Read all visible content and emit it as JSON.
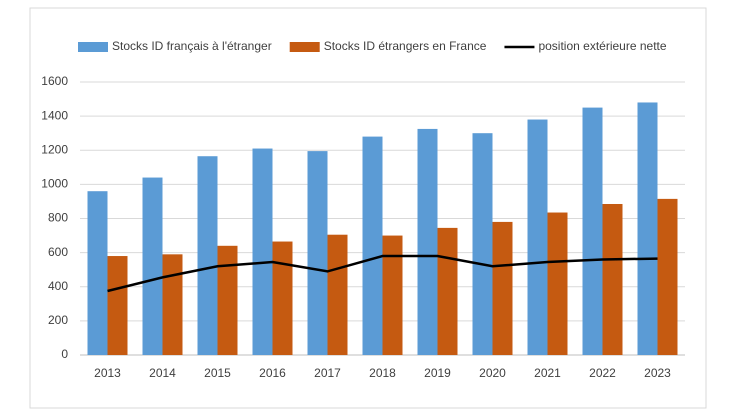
{
  "chart_data": {
    "type": "bar",
    "categories": [
      "2013",
      "2014",
      "2015",
      "2016",
      "2017",
      "2018",
      "2019",
      "2020",
      "2021",
      "2022",
      "2023"
    ],
    "series": [
      {
        "name": "Stocks ID français à l'étranger",
        "color": "#5b9bd5",
        "type": "bar",
        "values": [
          960,
          1040,
          1165,
          1210,
          1195,
          1280,
          1325,
          1300,
          1380,
          1450,
          1480
        ]
      },
      {
        "name": "Stocks ID étrangers en France",
        "color": "#c55a11",
        "type": "bar",
        "values": [
          580,
          590,
          640,
          665,
          705,
          700,
          745,
          780,
          835,
          885,
          915
        ]
      },
      {
        "name": "position extérieure nette",
        "color": "#000000",
        "type": "line",
        "values": [
          375,
          455,
          520,
          545,
          490,
          580,
          580,
          520,
          545,
          560,
          565
        ]
      }
    ],
    "ylim": [
      0,
      1600
    ],
    "yticks": [
      0,
      200,
      400,
      600,
      800,
      1000,
      1200,
      1400,
      1600
    ],
    "grid": true,
    "legend": "top"
  }
}
